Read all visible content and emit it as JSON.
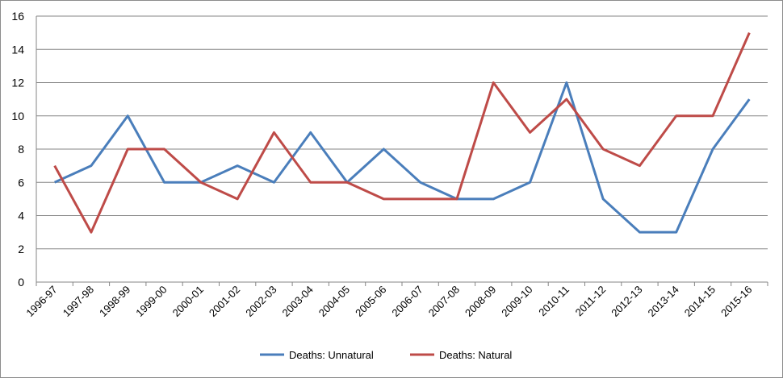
{
  "chart_data": {
    "type": "line",
    "title": "",
    "xlabel": "",
    "ylabel": "",
    "categories": [
      "1996-97",
      "1997-98",
      "1998-99",
      "1999-00",
      "2000-01",
      "2001-02",
      "2002-03",
      "2003-04",
      "2004-05",
      "2005-06",
      "2006-07",
      "2007-08",
      "2008-09",
      "2009-10",
      "2010-11",
      "2011-12",
      "2012-13",
      "2013-14",
      "2014-15",
      "2015-16"
    ],
    "ylim": [
      0,
      16
    ],
    "yticks": [
      "0",
      "2",
      "4",
      "6",
      "8",
      "10",
      "12",
      "14",
      "16"
    ],
    "grid": true,
    "legend_position": "bottom",
    "series": [
      {
        "name": "Deaths: Unnatural",
        "color": "#4a7ebb",
        "values": [
          6,
          7,
          10,
          6,
          6,
          7,
          6,
          9,
          6,
          8,
          6,
          5,
          5,
          6,
          12,
          5,
          3,
          3,
          8,
          11
        ]
      },
      {
        "name": "Deaths: Natural",
        "color": "#be4b48",
        "values": [
          7,
          3,
          8,
          8,
          6,
          5,
          9,
          6,
          6,
          5,
          5,
          5,
          12,
          9,
          11,
          8,
          7,
          10,
          10,
          15
        ]
      }
    ]
  }
}
